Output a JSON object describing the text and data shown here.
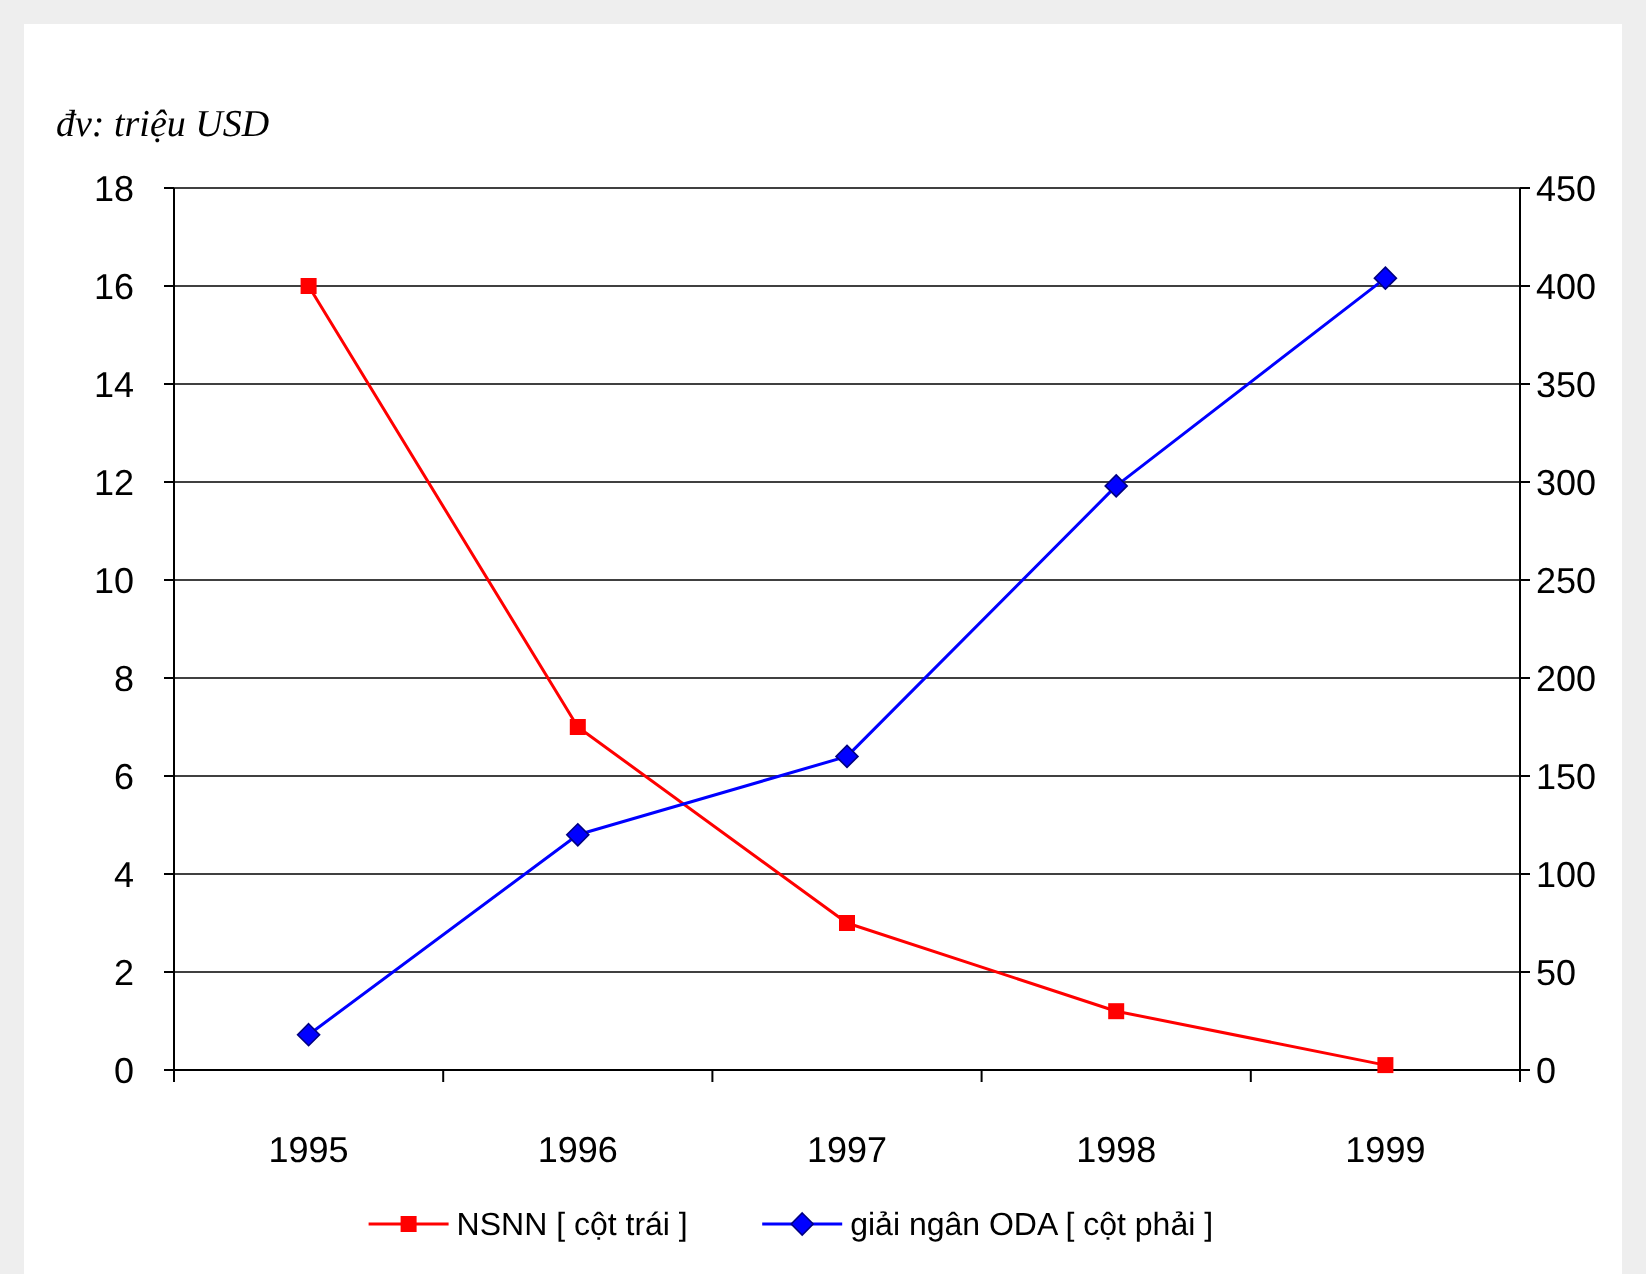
{
  "chart_data": {
    "type": "line",
    "ylabel": "đv: triệu USD",
    "categories": [
      "1995",
      "1996",
      "1997",
      "1998",
      "1999"
    ],
    "series": [
      {
        "name": "NSNN  [ cột trái ]",
        "color": "#ff0000",
        "marker": "square",
        "values": [
          16,
          7,
          3,
          1.2,
          0.1
        ]
      },
      {
        "name": "giải ngân ODA [ cột phải ]",
        "color": "#0000ff",
        "marker": "diamond",
        "axis": "y2",
        "values": [
          18,
          120,
          160,
          298,
          404
        ]
      }
    ],
    "ylim": [
      0,
      18
    ],
    "yticks": [
      0,
      2,
      4,
      6,
      8,
      10,
      12,
      14,
      16,
      18
    ],
    "y2lim": [
      0,
      450
    ],
    "y2ticks": [
      0,
      50,
      100,
      150,
      200,
      250,
      300,
      350,
      400,
      450
    ],
    "grid": "y",
    "legend": "bottom"
  }
}
